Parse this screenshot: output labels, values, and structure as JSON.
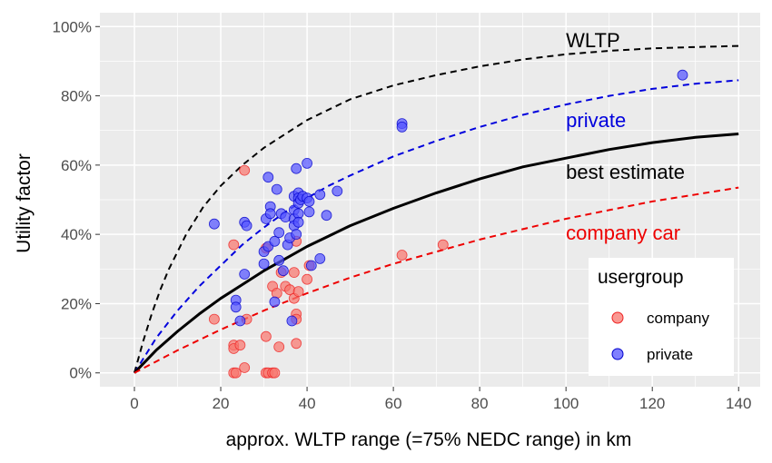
{
  "chart_data": {
    "type": "scatter",
    "xlabel": "approx. WLTP range (=75% NEDC range) in km",
    "ylabel": "Utility factor",
    "xlim": [
      -8,
      145
    ],
    "ylim": [
      -4,
      104
    ],
    "x_ticks": [
      0,
      20,
      40,
      60,
      80,
      100,
      120,
      140
    ],
    "y_ticks": [
      0,
      20,
      40,
      60,
      80,
      100
    ],
    "y_tick_labels": [
      "0%",
      "20%",
      "40%",
      "60%",
      "80%",
      "100%"
    ],
    "grid": true,
    "background": "#ebebeb",
    "curves": [
      {
        "name": "WLTP",
        "style": "dashed",
        "color": "#000000",
        "width": 2,
        "label_x": 100,
        "label_y": 94,
        "points": [
          [
            0,
            0
          ],
          [
            2,
            9
          ],
          [
            4,
            17
          ],
          [
            6,
            24
          ],
          [
            8,
            30
          ],
          [
            10,
            35
          ],
          [
            12,
            40
          ],
          [
            14,
            44
          ],
          [
            16,
            48
          ],
          [
            18,
            51
          ],
          [
            20,
            54
          ],
          [
            25,
            60
          ],
          [
            30,
            65
          ],
          [
            35,
            69
          ],
          [
            40,
            73
          ],
          [
            45,
            76
          ],
          [
            50,
            79
          ],
          [
            60,
            83
          ],
          [
            70,
            86
          ],
          [
            80,
            88.5
          ],
          [
            90,
            90.5
          ],
          [
            100,
            92
          ],
          [
            110,
            93
          ],
          [
            120,
            93.7
          ],
          [
            130,
            94.1
          ],
          [
            140,
            94.4
          ]
        ]
      },
      {
        "name": "private",
        "style": "dashed",
        "color": "#0000dd",
        "width": 2,
        "label_x": 100,
        "label_y": 71,
        "points": [
          [
            0,
            0
          ],
          [
            5,
            10
          ],
          [
            10,
            18
          ],
          [
            15,
            25
          ],
          [
            20,
            31
          ],
          [
            25,
            37
          ],
          [
            30,
            42
          ],
          [
            35,
            46.5
          ],
          [
            40,
            50.5
          ],
          [
            45,
            54
          ],
          [
            50,
            57
          ],
          [
            60,
            62.5
          ],
          [
            70,
            67
          ],
          [
            80,
            71
          ],
          [
            90,
            74.5
          ],
          [
            100,
            77.5
          ],
          [
            110,
            80
          ],
          [
            120,
            82
          ],
          [
            130,
            83.5
          ],
          [
            140,
            84.5
          ]
        ]
      },
      {
        "name": "best estimate",
        "style": "solid",
        "color": "#000000",
        "width": 3,
        "label_x": 100,
        "label_y": 56,
        "points": [
          [
            0,
            0
          ],
          [
            5,
            6.5
          ],
          [
            10,
            12
          ],
          [
            15,
            17
          ],
          [
            20,
            21.5
          ],
          [
            25,
            25.5
          ],
          [
            30,
            29.5
          ],
          [
            35,
            33
          ],
          [
            40,
            36.5
          ],
          [
            45,
            39.5
          ],
          [
            50,
            42.5
          ],
          [
            60,
            47.5
          ],
          [
            70,
            52
          ],
          [
            80,
            56
          ],
          [
            90,
            59.5
          ],
          [
            100,
            62
          ],
          [
            110,
            64.5
          ],
          [
            120,
            66.5
          ],
          [
            130,
            68
          ],
          [
            140,
            69
          ]
        ]
      },
      {
        "name": "company car",
        "style": "dashed",
        "color": "#ee0000",
        "width": 2,
        "label_x": 100,
        "label_y": 38.5,
        "points": [
          [
            0,
            0
          ],
          [
            10,
            6.5
          ],
          [
            20,
            12.5
          ],
          [
            30,
            18
          ],
          [
            40,
            23
          ],
          [
            50,
            27.5
          ],
          [
            60,
            31.5
          ],
          [
            70,
            35
          ],
          [
            80,
            38.5
          ],
          [
            90,
            41.5
          ],
          [
            100,
            44.5
          ],
          [
            110,
            47
          ],
          [
            120,
            49.5
          ],
          [
            130,
            51.5
          ],
          [
            140,
            53.5
          ]
        ]
      }
    ],
    "series": [
      {
        "name": "company",
        "color": "#f8766d",
        "edge": "#ee2222",
        "points": [
          [
            18.5,
            15.5
          ],
          [
            23,
            37
          ],
          [
            23,
            8
          ],
          [
            23,
            7
          ],
          [
            23,
            0
          ],
          [
            23.5,
            0
          ],
          [
            24.5,
            8
          ],
          [
            25.5,
            58.5
          ],
          [
            25.5,
            1.5
          ],
          [
            26,
            15.5
          ],
          [
            30.5,
            10.5
          ],
          [
            30.5,
            36
          ],
          [
            30.5,
            0
          ],
          [
            31,
            0
          ],
          [
            32,
            25
          ],
          [
            32,
            0
          ],
          [
            32.5,
            0
          ],
          [
            33,
            23
          ],
          [
            33.5,
            7.5
          ],
          [
            34,
            29
          ],
          [
            35,
            25
          ],
          [
            36,
            24
          ],
          [
            37,
            29
          ],
          [
            37,
            21.5
          ],
          [
            37.5,
            17
          ],
          [
            37.5,
            15.5
          ],
          [
            37.5,
            8.5
          ],
          [
            37.5,
            38
          ],
          [
            38,
            23.5
          ],
          [
            40,
            27
          ],
          [
            40.5,
            31
          ],
          [
            62,
            34
          ],
          [
            71.5,
            37
          ]
        ]
      },
      {
        "name": "private",
        "color": "#5555ff",
        "edge": "#0000cc",
        "points": [
          [
            18.5,
            43
          ],
          [
            23.5,
            21
          ],
          [
            23.5,
            19
          ],
          [
            24.5,
            15
          ],
          [
            25.5,
            43.5
          ],
          [
            25.5,
            28.5
          ],
          [
            26,
            42.5
          ],
          [
            30,
            35
          ],
          [
            30,
            31.5
          ],
          [
            30.5,
            44.5
          ],
          [
            31,
            56.5
          ],
          [
            31,
            36.5
          ],
          [
            31.5,
            48
          ],
          [
            31.5,
            46
          ],
          [
            32.5,
            38
          ],
          [
            32.5,
            20.5
          ],
          [
            33,
            53
          ],
          [
            33.5,
            32.5
          ],
          [
            33.5,
            40.5
          ],
          [
            34,
            46
          ],
          [
            34.5,
            29.5
          ],
          [
            35,
            45
          ],
          [
            35.5,
            37
          ],
          [
            36,
            39
          ],
          [
            36.5,
            15
          ],
          [
            37,
            51
          ],
          [
            37,
            47
          ],
          [
            37,
            44.5
          ],
          [
            37,
            42.5
          ],
          [
            37.5,
            59
          ],
          [
            37.5,
            40
          ],
          [
            38,
            52
          ],
          [
            38,
            50.5
          ],
          [
            38,
            49
          ],
          [
            38,
            46
          ],
          [
            38,
            43.5
          ],
          [
            38.5,
            50
          ],
          [
            39,
            51
          ],
          [
            40,
            60.5
          ],
          [
            40,
            50.5
          ],
          [
            40.5,
            49.5
          ],
          [
            40.5,
            46.5
          ],
          [
            41,
            31
          ],
          [
            43,
            51.5
          ],
          [
            43,
            33
          ],
          [
            44.5,
            45.5
          ],
          [
            47,
            52.5
          ],
          [
            62,
            72
          ],
          [
            62,
            71
          ],
          [
            127,
            86
          ]
        ]
      }
    ],
    "legend": {
      "title": "usergroup",
      "placement": "bottom-right",
      "items": [
        {
          "label": "company",
          "color": "#f8766d",
          "edge": "#ee2222"
        },
        {
          "label": "private",
          "color": "#5555ff",
          "edge": "#0000cc"
        }
      ]
    }
  }
}
